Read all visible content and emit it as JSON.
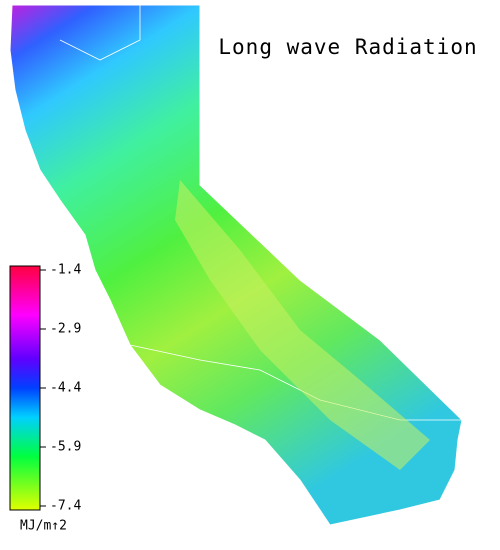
{
  "title": "Long wave Radiation",
  "colorbar": {
    "range": [
      -7.4,
      -1.4
    ],
    "ticks": [
      -1.4,
      -2.9,
      -4.4,
      -5.9,
      -7.4
    ],
    "unit": "MJ/m↑2"
  }
}
